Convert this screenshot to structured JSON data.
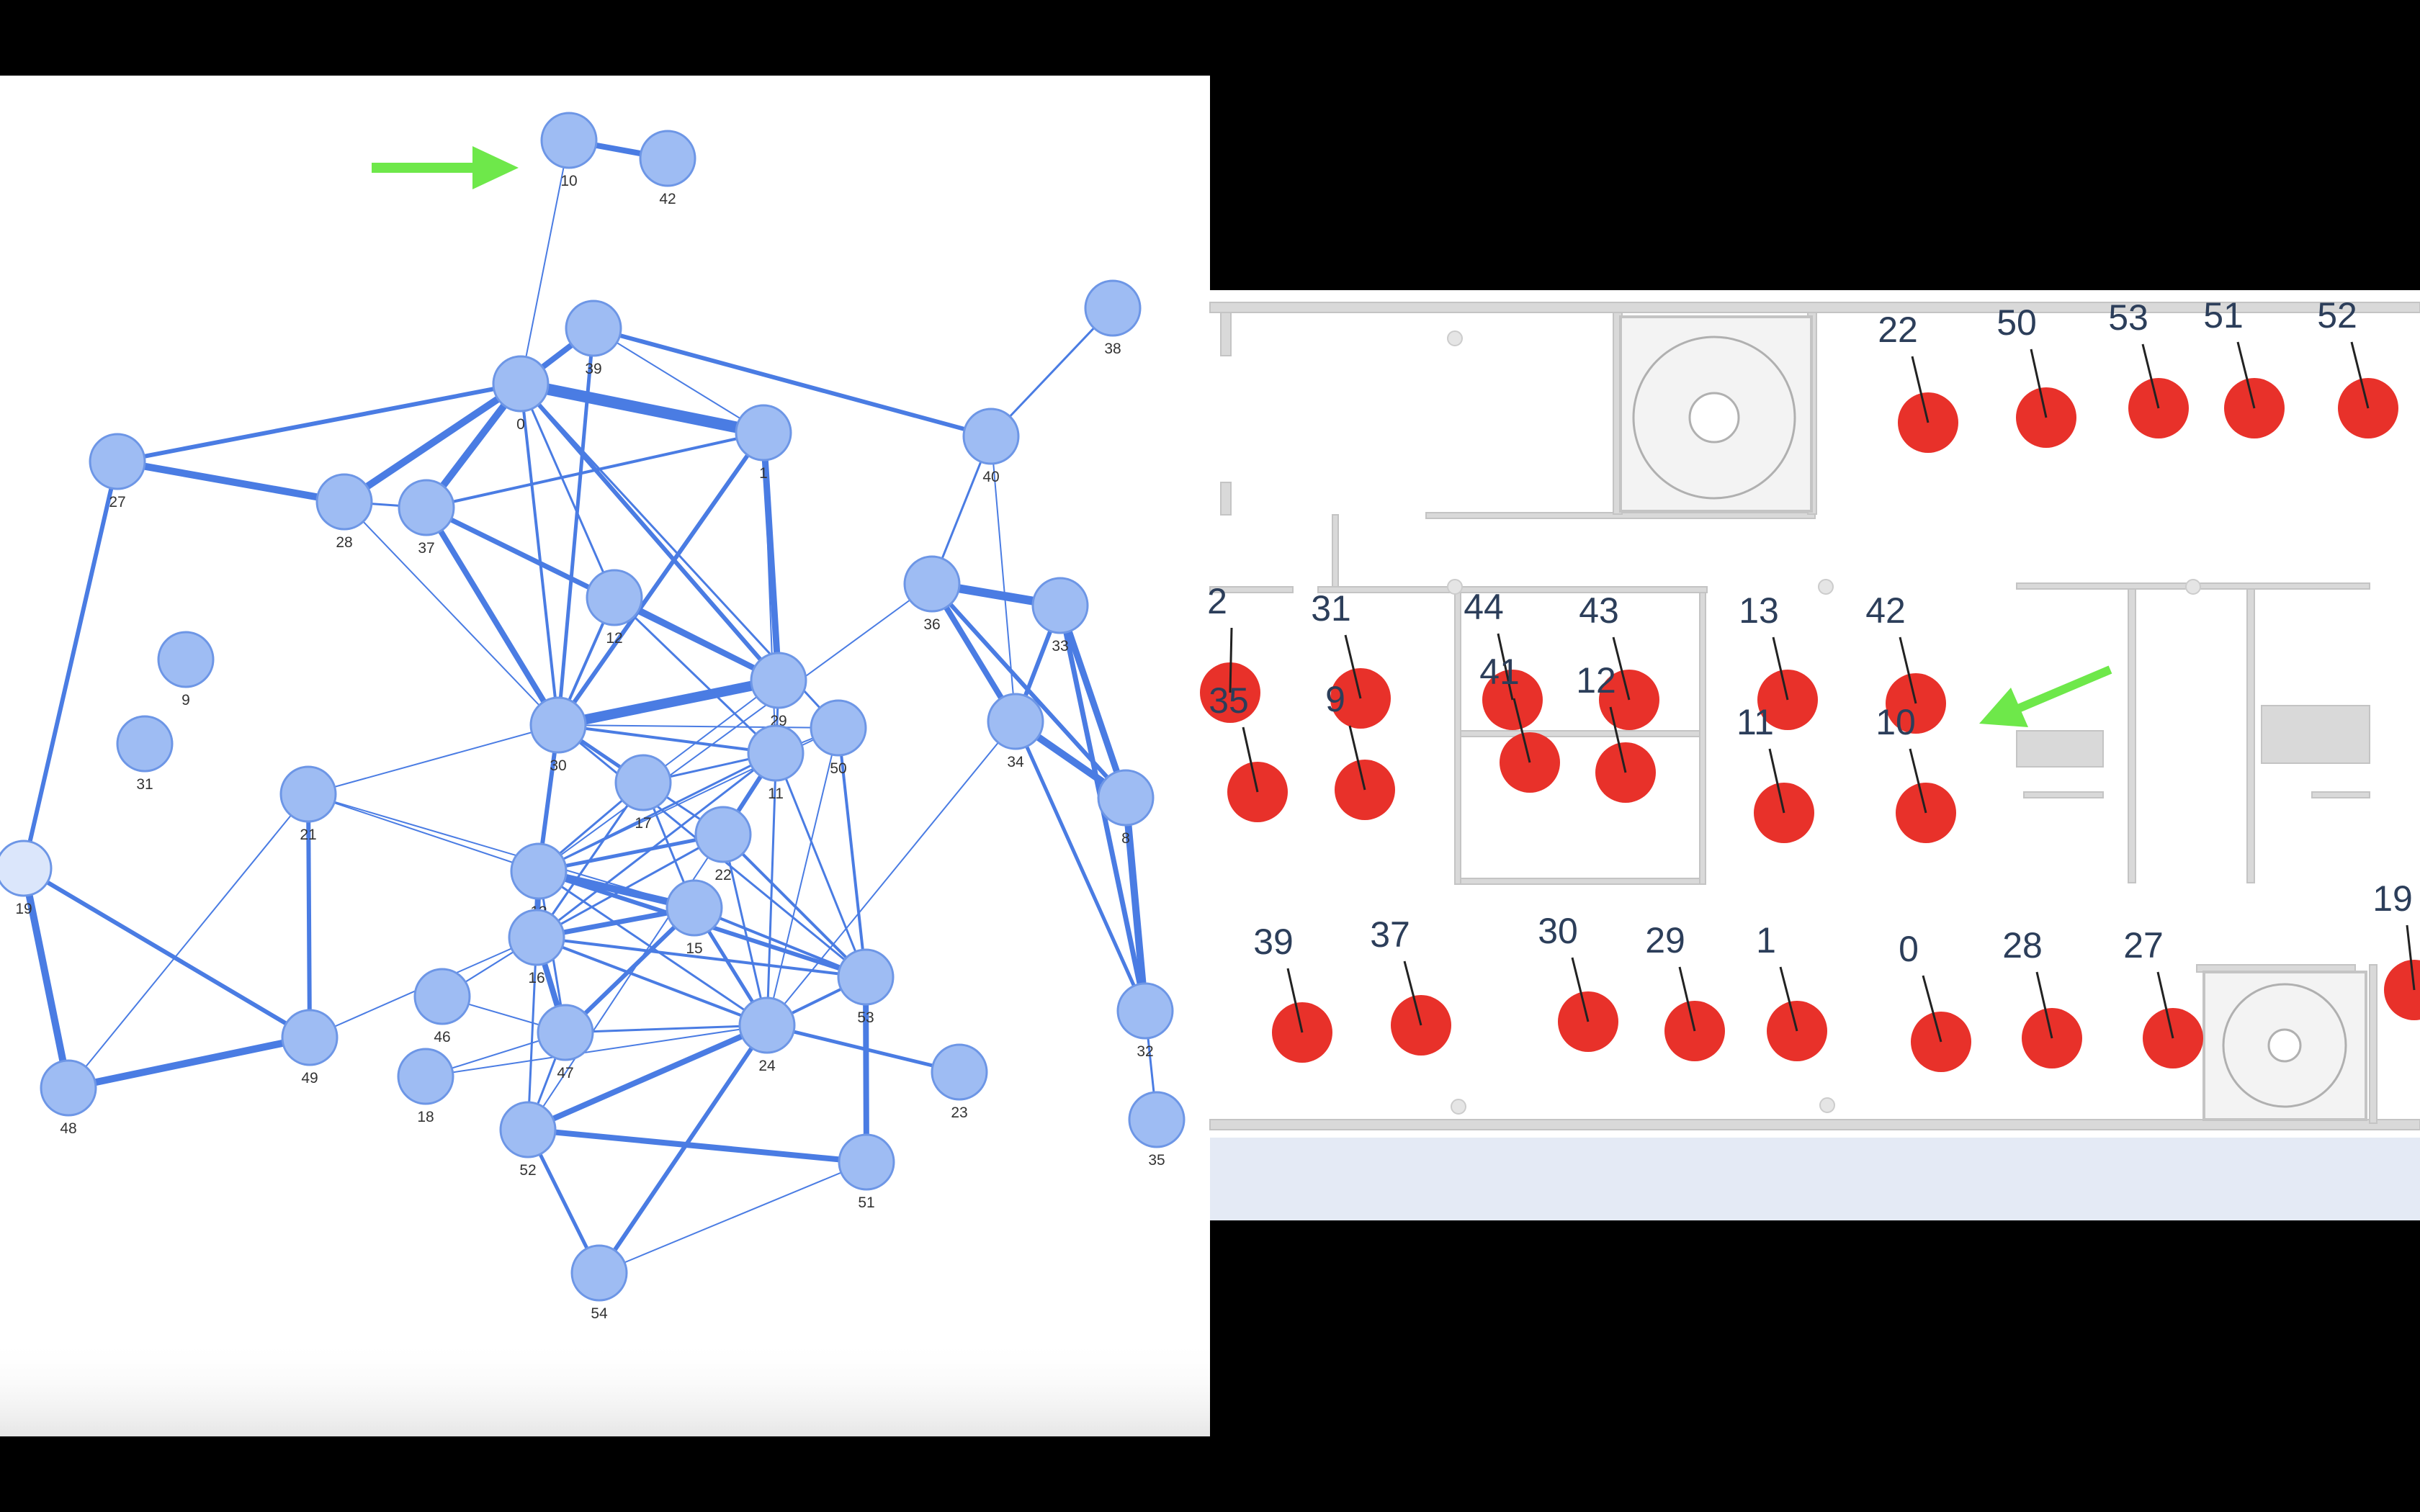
{
  "graph": {
    "nodes": [
      {
        "id": "10"
      },
      {
        "id": "42"
      },
      {
        "id": "39"
      },
      {
        "id": "0"
      },
      {
        "id": "1"
      },
      {
        "id": "38"
      },
      {
        "id": "27"
      },
      {
        "id": "28"
      },
      {
        "id": "37"
      },
      {
        "id": "40"
      },
      {
        "id": "12"
      },
      {
        "id": "36"
      },
      {
        "id": "33"
      },
      {
        "id": "9"
      },
      {
        "id": "31"
      },
      {
        "id": "30"
      },
      {
        "id": "29"
      },
      {
        "id": "50"
      },
      {
        "id": "34"
      },
      {
        "id": "11"
      },
      {
        "id": "17"
      },
      {
        "id": "21"
      },
      {
        "id": "22"
      },
      {
        "id": "8"
      },
      {
        "id": "19"
      },
      {
        "id": "13"
      },
      {
        "id": "15"
      },
      {
        "id": "16"
      },
      {
        "id": "53"
      },
      {
        "id": "46"
      },
      {
        "id": "32"
      },
      {
        "id": "49"
      },
      {
        "id": "47"
      },
      {
        "id": "24"
      },
      {
        "id": "23"
      },
      {
        "id": "48"
      },
      {
        "id": "18"
      },
      {
        "id": "52"
      },
      {
        "id": "35"
      },
      {
        "id": "51"
      },
      {
        "id": "54"
      }
    ]
  },
  "floorplan": {
    "nodes": [
      {
        "id": "22"
      },
      {
        "id": "50"
      },
      {
        "id": "53"
      },
      {
        "id": "51"
      },
      {
        "id": "52"
      },
      {
        "id": "2"
      },
      {
        "id": "31"
      },
      {
        "id": "44"
      },
      {
        "id": "43"
      },
      {
        "id": "13"
      },
      {
        "id": "42"
      },
      {
        "id": "35"
      },
      {
        "id": "9"
      },
      {
        "id": "41"
      },
      {
        "id": "12"
      },
      {
        "id": "11"
      },
      {
        "id": "10"
      },
      {
        "id": "39"
      },
      {
        "id": "37"
      },
      {
        "id": "30"
      },
      {
        "id": "29"
      },
      {
        "id": "1"
      },
      {
        "id": "0"
      },
      {
        "id": "28"
      },
      {
        "id": "27"
      },
      {
        "id": "19"
      }
    ]
  },
  "colors": {
    "graph_node": "#9ebcf3",
    "graph_edge": "#4a7ce3",
    "floor_node": "#e8312a",
    "arrow": "#6ee84a",
    "label": "#2c3e5a"
  }
}
